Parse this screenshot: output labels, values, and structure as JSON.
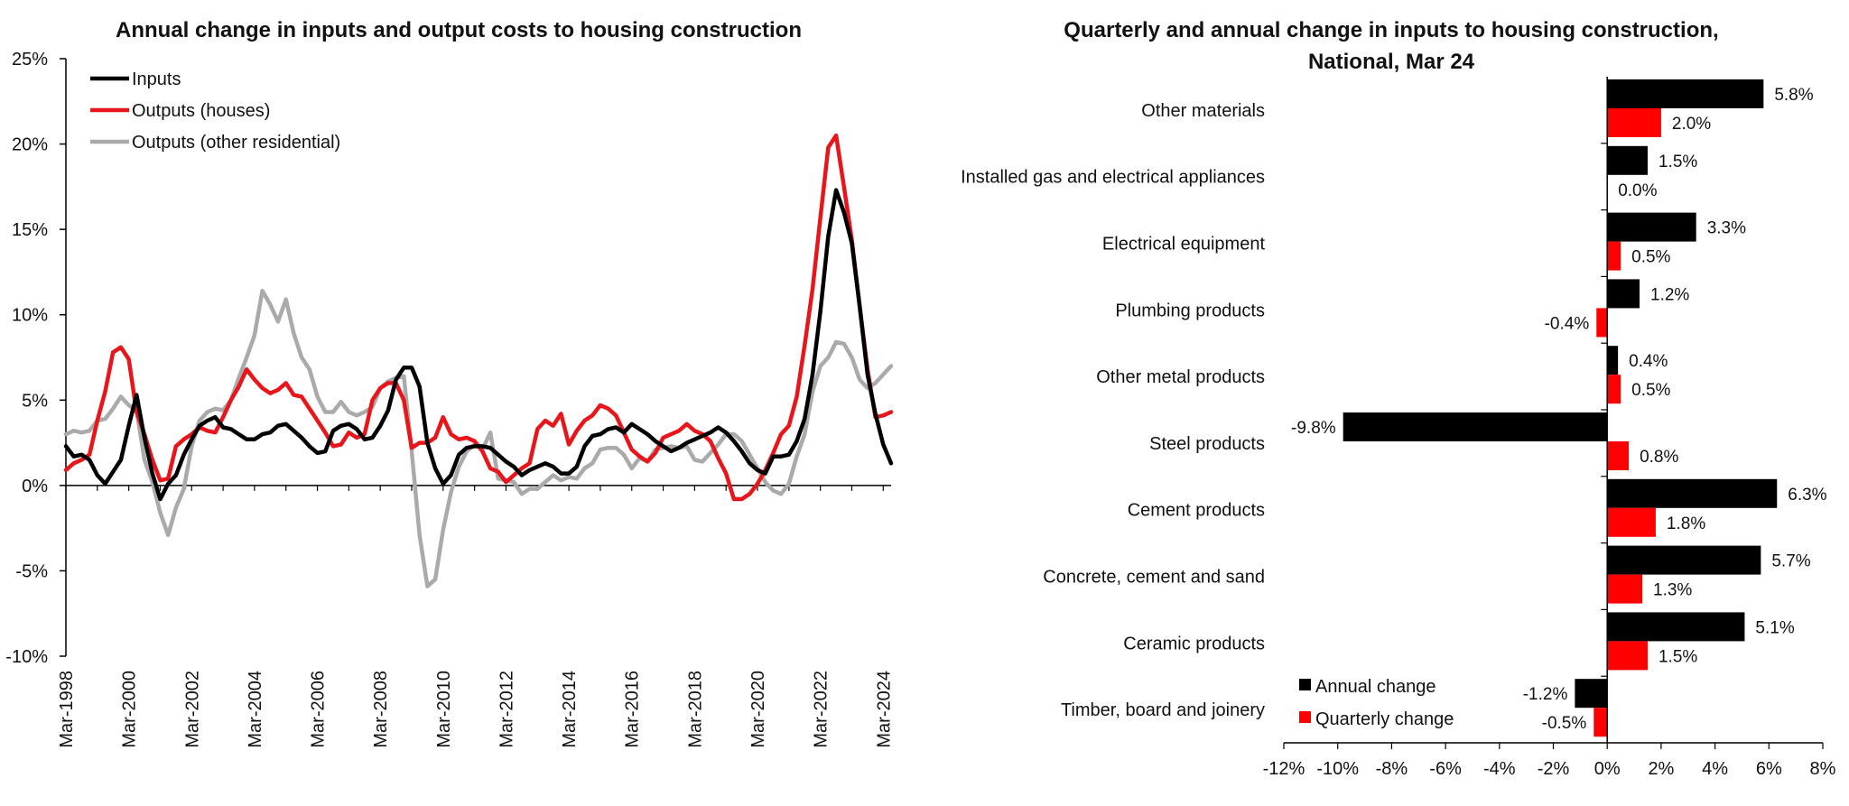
{
  "chart_data": [
    {
      "type": "line",
      "title": "Annual change in inputs and output costs to housing construction",
      "xlabel": "",
      "ylabel": "",
      "ylim": [
        -10,
        25
      ],
      "yticks": [
        "25%",
        "20%",
        "15%",
        "10%",
        "5%",
        "0%",
        "-5%",
        "-10%"
      ],
      "xticks": [
        "Mar-1998",
        "Mar-2000",
        "Mar-2002",
        "Mar-2004",
        "Mar-2006",
        "Mar-2008",
        "Mar-2010",
        "Mar-2012",
        "Mar-2014",
        "Mar-2016",
        "Mar-2018",
        "Mar-2020",
        "Mar-2022",
        "Mar-2024"
      ],
      "x_start": "Mar-1998",
      "x_step": "quarter",
      "legend_position": "top-left",
      "grid": false,
      "series": [
        {
          "name": "Inputs",
          "color": "#000000",
          "values": [
            2.3,
            1.7,
            1.8,
            1.5,
            0.6,
            0.1,
            0.8,
            1.5,
            3.5,
            5.3,
            2.8,
            0.7,
            -0.8,
            0.1,
            0.6,
            1.8,
            2.7,
            3.5,
            3.8,
            4.0,
            3.4,
            3.3,
            3.0,
            2.7,
            2.7,
            3.0,
            3.1,
            3.5,
            3.6,
            3.2,
            2.8,
            2.3,
            1.9,
            2.0,
            3.2,
            3.5,
            3.6,
            3.3,
            2.7,
            2.8,
            3.5,
            4.4,
            6.2,
            6.9,
            6.9,
            5.8,
            2.5,
            1.0,
            0.1,
            0.6,
            1.8,
            2.2,
            2.3,
            2.3,
            2.2,
            1.8,
            1.4,
            1.1,
            0.6,
            0.9,
            1.1,
            1.3,
            1.1,
            0.7,
            0.7,
            1.1,
            2.3,
            2.9,
            3.0,
            3.3,
            3.4,
            3.1,
            3.6,
            3.3,
            3.0,
            2.6,
            2.3,
            2.0,
            2.2,
            2.5,
            2.7,
            2.9,
            3.1,
            3.4,
            3.1,
            2.6,
            2.0,
            1.3,
            0.9,
            0.7,
            1.7,
            1.7,
            1.8,
            2.6,
            3.9,
            6.5,
            10.2,
            14.6,
            17.3,
            16.0,
            14.2,
            10.5,
            6.5,
            4.2,
            2.4,
            1.3
          ]
        },
        {
          "name": "Outputs (houses)",
          "color": "#e8161b",
          "values": [
            0.9,
            1.3,
            1.5,
            1.8,
            3.8,
            5.5,
            7.8,
            8.1,
            7.4,
            4.3,
            3.0,
            1.5,
            0.3,
            0.4,
            2.3,
            2.7,
            3.0,
            3.4,
            3.2,
            3.1,
            4.0,
            5.0,
            5.8,
            6.8,
            6.2,
            5.7,
            5.4,
            5.6,
            6.0,
            5.3,
            5.2,
            4.5,
            3.8,
            3.1,
            2.3,
            2.4,
            3.1,
            2.8,
            3.0,
            5.0,
            5.7,
            6.0,
            6.0,
            5.0,
            2.2,
            2.5,
            2.5,
            2.8,
            4.0,
            3.0,
            2.7,
            2.8,
            2.6,
            2.0,
            1.0,
            0.8,
            0.2,
            0.6,
            1.0,
            1.3,
            3.3,
            3.8,
            3.5,
            4.2,
            2.4,
            3.2,
            3.8,
            4.1,
            4.7,
            4.5,
            4.1,
            3.1,
            2.1,
            1.7,
            1.4,
            1.9,
            2.8,
            3.0,
            3.2,
            3.6,
            3.2,
            3.0,
            2.6,
            1.6,
            0.7,
            -0.8,
            -0.8,
            -0.5,
            0.1,
            0.9,
            1.9,
            3.0,
            3.5,
            5.2,
            8.2,
            11.5,
            15.7,
            19.8,
            20.5,
            17.5,
            14.4,
            10.5,
            6.8,
            4.0,
            4.1,
            4.3
          ]
        },
        {
          "name": "Outputs (other residential)",
          "color": "#aaaaaa",
          "values": [
            3.0,
            3.2,
            3.1,
            3.2,
            3.8,
            3.9,
            4.5,
            5.2,
            4.7,
            4.4,
            1.5,
            0.2,
            -1.6,
            -2.9,
            -1.3,
            -0.2,
            2.3,
            3.8,
            4.3,
            4.5,
            4.4,
            5.0,
            6.3,
            7.5,
            8.8,
            11.4,
            10.6,
            9.6,
            10.9,
            8.9,
            7.5,
            6.8,
            5.2,
            4.3,
            4.3,
            4.9,
            4.3,
            4.1,
            4.3,
            4.6,
            5.7,
            6.1,
            6.3,
            6.4,
            2.0,
            -2.9,
            -5.9,
            -5.5,
            -2.6,
            -0.4,
            1.1,
            2.0,
            2.4,
            2.1,
            3.1,
            0.4,
            0.3,
            0.2,
            -0.5,
            -0.2,
            -0.2,
            0.2,
            0.6,
            0.3,
            0.5,
            0.4,
            1.0,
            1.3,
            2.1,
            2.2,
            2.2,
            1.8,
            1.0,
            1.6,
            1.4,
            2.1,
            2.2,
            2.3,
            2.2,
            2.3,
            1.5,
            1.4,
            1.9,
            2.4,
            3.0,
            3.0,
            2.6,
            1.8,
            1.0,
            0.2,
            -0.3,
            -0.5,
            0.1,
            1.7,
            3.0,
            5.5,
            7.0,
            7.5,
            8.4,
            8.3,
            7.5,
            6.2,
            5.7,
            6.0,
            6.5,
            7.0
          ]
        }
      ]
    },
    {
      "type": "bar",
      "orientation": "horizontal",
      "title": "Quarterly and annual change in inputs to housing construction, National, Mar 24",
      "xlabel": "",
      "ylabel": "",
      "xlim": [
        -12,
        8
      ],
      "xticks": [
        "-12%",
        "-10%",
        "-8%",
        "-6%",
        "-4%",
        "-2%",
        "0%",
        "2%",
        "4%",
        "6%",
        "8%"
      ],
      "legend_position": "bottom-left",
      "grid": false,
      "categories": [
        "Other materials",
        "Installed gas and electrical appliances",
        "Electrical equipment",
        "Plumbing products",
        "Other metal products",
        "Steel products",
        "Cement products",
        "Concrete, cement and sand",
        "Ceramic products",
        "Timber, board and joinery"
      ],
      "series": [
        {
          "name": "Annual change",
          "color": "#000000",
          "values": [
            5.8,
            1.5,
            3.3,
            1.2,
            0.4,
            -9.8,
            6.3,
            5.7,
            5.1,
            -1.2
          ],
          "labels": [
            "5.8%",
            "1.5%",
            "3.3%",
            "1.2%",
            "0.4%",
            "-9.8%",
            "6.3%",
            "5.7%",
            "5.1%",
            "-1.2%"
          ]
        },
        {
          "name": "Quarterly change",
          "color": "#ff0000",
          "values": [
            2.0,
            0.0,
            0.5,
            -0.4,
            0.5,
            0.8,
            1.8,
            1.3,
            1.5,
            -0.5
          ],
          "labels": [
            "2.0%",
            "0.0%",
            "0.5%",
            "-0.4%",
            "0.5%",
            "0.8%",
            "1.8%",
            "1.3%",
            "1.5%",
            "-0.5%"
          ]
        }
      ]
    }
  ]
}
